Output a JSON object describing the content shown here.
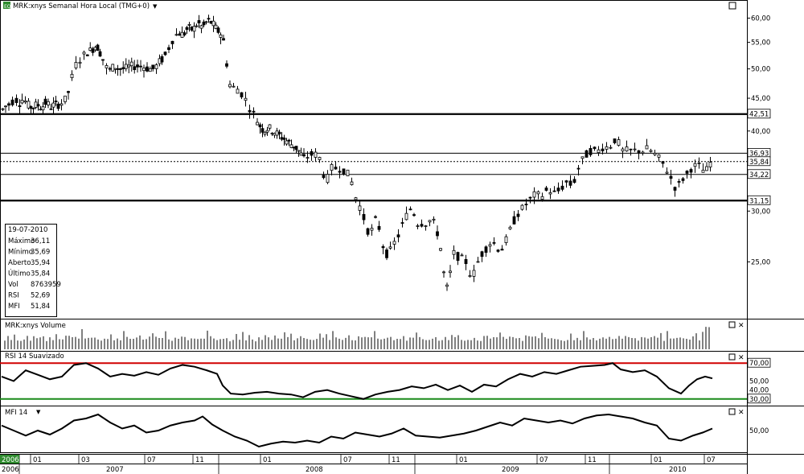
{
  "window": {
    "title": "MRK:xnys Semanal Hora Local (TMG+0)",
    "app_icon_label": "EQ"
  },
  "info_box": {
    "date": "19-07-2010",
    "rows": [
      {
        "label": "Máximo",
        "value": "36,11"
      },
      {
        "label": "Mínimo",
        "value": "35,69"
      },
      {
        "label": "Aberto",
        "value": "35,94"
      },
      {
        "label": "Último",
        "value": "35,84"
      },
      {
        "label": "Vol",
        "value": "8763959"
      },
      {
        "label": "RSI",
        "value": "52,69"
      },
      {
        "label": "MFI",
        "value": "51,84"
      }
    ]
  },
  "panels": {
    "volume": {
      "title": "MRK:xnys Volume"
    },
    "rsi": {
      "title": "RSI 14 Suavizado",
      "upper_label": "70,00",
      "lower_label": "30,00",
      "ticks": [
        "70,00",
        "50,00",
        "40,00",
        "30,00"
      ],
      "upper_color": "#d00000",
      "lower_color": "#1a8a1a"
    },
    "mfi": {
      "title": "MFI 14",
      "ticks": [
        "50,00"
      ]
    }
  },
  "price_axis_ticks": [
    "60,00",
    "55,00",
    "50,00",
    "45,00",
    "40,00",
    "30,00",
    "25,00"
  ],
  "horizontal_levels": [
    {
      "label": "42,51",
      "value": 42.51,
      "style": "heavy"
    },
    {
      "label": "36,93",
      "value": 36.93,
      "style": "thin"
    },
    {
      "label": "35,84",
      "value": 35.84,
      "style": "dotted"
    },
    {
      "label": "34,22",
      "value": 34.22,
      "style": "thin"
    },
    {
      "label": "31,15",
      "value": 31.15,
      "style": "heavy"
    }
  ],
  "time_axis": {
    "months": [
      "01",
      "03",
      "07",
      "11",
      "01",
      "07",
      "11",
      "01",
      "07",
      "11",
      "01",
      "07"
    ],
    "years": [
      "2006",
      "2007",
      "2008",
      "2009",
      "2010"
    ]
  },
  "chart_data": {
    "type": "candlestick",
    "title": "MRK:xnys Semanal Hora Local (TMG+0)",
    "y_axis": {
      "scale": "log",
      "ylim": [
        20.5,
        61.5
      ],
      "ticks": [
        60,
        55,
        50,
        45,
        40,
        30,
        25
      ]
    },
    "x_range": [
      "2006-10",
      "2010-07"
    ],
    "price_points": [
      [
        0,
        43.5
      ],
      [
        3,
        43.0
      ],
      [
        7,
        44.5
      ],
      [
        11,
        43.5
      ],
      [
        16,
        45.5
      ],
      [
        21,
        44.0
      ],
      [
        27,
        45.0
      ],
      [
        32,
        44.0
      ],
      [
        38,
        43.5
      ],
      [
        44,
        44.0
      ],
      [
        50,
        43.5
      ],
      [
        56,
        44.5
      ],
      [
        60,
        43.5
      ],
      [
        66,
        44.0
      ],
      [
        72,
        44.0
      ],
      [
        77,
        44.5
      ],
      [
        81,
        45.0
      ],
      [
        85,
        47.0
      ],
      [
        90,
        50.0
      ],
      [
        95,
        51.5
      ],
      [
        100,
        52.0
      ],
      [
        105,
        53.0
      ],
      [
        112,
        53.5
      ],
      [
        118,
        54.5
      ],
      [
        124,
        52.5
      ],
      [
        128,
        51.0
      ],
      [
        133,
        49.5
      ],
      [
        140,
        50.5
      ],
      [
        146,
        50.0
      ],
      [
        153,
        50.0
      ],
      [
        160,
        50.5
      ],
      [
        167,
        50.5
      ],
      [
        175,
        50.5
      ],
      [
        183,
        50.0
      ],
      [
        190,
        50.0
      ],
      [
        195,
        51.0
      ],
      [
        201,
        52.0
      ],
      [
        206,
        53.0
      ],
      [
        210,
        55.0
      ],
      [
        215,
        56.0
      ],
      [
        220,
        57.0
      ],
      [
        226,
        56.5
      ],
      [
        232,
        58.0
      ],
      [
        238,
        57.5
      ],
      [
        244,
        59.0
      ],
      [
        250,
        58.0
      ],
      [
        256,
        59.5
      ],
      [
        262,
        59.0
      ],
      [
        268,
        57.5
      ],
      [
        274,
        56.5
      ],
      [
        278,
        54.0
      ],
      [
        282,
        48.0
      ],
      [
        286,
        46.5
      ],
      [
        291,
        47.0
      ],
      [
        296,
        46.0
      ],
      [
        301,
        45.5
      ],
      [
        306,
        44.0
      ],
      [
        311,
        43.0
      ],
      [
        316,
        42.0
      ],
      [
        320,
        41.0
      ],
      [
        326,
        40.0
      ],
      [
        332,
        40.5
      ],
      [
        338,
        40.0
      ],
      [
        344,
        39.5
      ],
      [
        350,
        39.0
      ],
      [
        356,
        38.5
      ],
      [
        362,
        38.0
      ],
      [
        368,
        37.5
      ],
      [
        374,
        36.5
      ],
      [
        378,
        36.0
      ],
      [
        383,
        37.0
      ],
      [
        388,
        36.5
      ],
      [
        393,
        37.0
      ],
      [
        398,
        35.5
      ],
      [
        403,
        33.0
      ],
      [
        408,
        34.5
      ],
      [
        413,
        35.5
      ],
      [
        418,
        34.5
      ],
      [
        423,
        35.5
      ],
      [
        428,
        34.0
      ],
      [
        433,
        34.5
      ],
      [
        438,
        32.0
      ],
      [
        443,
        31.0
      ],
      [
        448,
        30.0
      ],
      [
        453,
        28.5
      ],
      [
        458,
        27.5
      ],
      [
        463,
        28.5
      ],
      [
        467,
        29.5
      ],
      [
        472,
        27.0
      ],
      [
        477,
        26.0
      ],
      [
        481,
        25.5
      ],
      [
        486,
        26.5
      ],
      [
        491,
        27.0
      ],
      [
        496,
        28.0
      ],
      [
        501,
        29.0
      ],
      [
        506,
        30.0
      ],
      [
        511,
        30.5
      ],
      [
        515,
        29.0
      ],
      [
        520,
        28.5
      ],
      [
        525,
        29.0
      ],
      [
        530,
        28.5
      ],
      [
        535,
        29.5
      ],
      [
        540,
        28.0
      ],
      [
        544,
        27.5
      ],
      [
        548,
        25.0
      ],
      [
        552,
        23.0
      ],
      [
        556,
        22.5
      ],
      [
        560,
        25.5
      ],
      [
        565,
        26.0
      ],
      [
        570,
        25.0
      ],
      [
        575,
        25.5
      ],
      [
        580,
        24.5
      ],
      [
        585,
        23.5
      ],
      [
        590,
        24.5
      ],
      [
        595,
        25.5
      ],
      [
        600,
        26.0
      ],
      [
        605,
        26.5
      ],
      [
        610,
        27.0
      ],
      [
        615,
        26.5
      ],
      [
        620,
        26.0
      ],
      [
        625,
        26.5
      ],
      [
        630,
        27.5
      ],
      [
        635,
        28.5
      ],
      [
        640,
        29.5
      ],
      [
        645,
        30.0
      ],
      [
        650,
        30.5
      ],
      [
        655,
        31.0
      ],
      [
        660,
        31.5
      ],
      [
        665,
        32.0
      ],
      [
        670,
        31.5
      ],
      [
        675,
        32.0
      ],
      [
        680,
        32.5
      ],
      [
        685,
        32.0
      ],
      [
        690,
        32.0
      ],
      [
        695,
        32.5
      ],
      [
        700,
        33.0
      ],
      [
        705,
        33.5
      ],
      [
        710,
        32.5
      ],
      [
        715,
        34.5
      ],
      [
        720,
        35.5
      ],
      [
        725,
        36.5
      ],
      [
        730,
        37.0
      ],
      [
        735,
        37.5
      ],
      [
        740,
        37.0
      ],
      [
        745,
        37.5
      ],
      [
        750,
        38.0
      ],
      [
        755,
        37.5
      ],
      [
        760,
        38.5
      ],
      [
        765,
        39.0
      ],
      [
        770,
        37.5
      ],
      [
        775,
        37.0
      ],
      [
        780,
        37.5
      ],
      [
        785,
        37.0
      ],
      [
        790,
        37.5
      ],
      [
        795,
        37.0
      ],
      [
        800,
        37.5
      ],
      [
        805,
        37.5
      ],
      [
        810,
        37.0
      ],
      [
        815,
        36.5
      ],
      [
        820,
        36.0
      ],
      [
        825,
        35.0
      ],
      [
        830,
        34.5
      ],
      [
        835,
        33.0
      ],
      [
        840,
        32.5
      ],
      [
        845,
        33.5
      ],
      [
        850,
        34.0
      ],
      [
        855,
        34.5
      ],
      [
        860,
        35.5
      ],
      [
        865,
        35.0
      ],
      [
        870,
        35.5
      ],
      [
        875,
        34.0
      ],
      [
        879,
        35.5
      ],
      [
        884,
        35.84
      ]
    ],
    "volume_levels": [
      0.25,
      0.33,
      0.28,
      0.4,
      0.3,
      0.22,
      0.35,
      0.45,
      0.3,
      0.5,
      0.28,
      0.6,
      0.33
    ],
    "rsi_points": [
      [
        0,
        55
      ],
      [
        15,
        50
      ],
      [
        30,
        62
      ],
      [
        45,
        57
      ],
      [
        60,
        52
      ],
      [
        75,
        55
      ],
      [
        90,
        68
      ],
      [
        105,
        70
      ],
      [
        120,
        64
      ],
      [
        135,
        55
      ],
      [
        150,
        58
      ],
      [
        165,
        56
      ],
      [
        180,
        60
      ],
      [
        195,
        57
      ],
      [
        210,
        64
      ],
      [
        225,
        68
      ],
      [
        240,
        66
      ],
      [
        255,
        62
      ],
      [
        268,
        58
      ],
      [
        275,
        45
      ],
      [
        285,
        36
      ],
      [
        300,
        35
      ],
      [
        315,
        37
      ],
      [
        330,
        38
      ],
      [
        345,
        36
      ],
      [
        360,
        35
      ],
      [
        375,
        32
      ],
      [
        390,
        38
      ],
      [
        405,
        40
      ],
      [
        420,
        36
      ],
      [
        435,
        33
      ],
      [
        450,
        30
      ],
      [
        465,
        35
      ],
      [
        480,
        38
      ],
      [
        495,
        40
      ],
      [
        510,
        44
      ],
      [
        525,
        42
      ],
      [
        540,
        46
      ],
      [
        555,
        40
      ],
      [
        570,
        45
      ],
      [
        585,
        38
      ],
      [
        600,
        46
      ],
      [
        615,
        44
      ],
      [
        630,
        52
      ],
      [
        645,
        58
      ],
      [
        660,
        55
      ],
      [
        675,
        60
      ],
      [
        690,
        58
      ],
      [
        705,
        62
      ],
      [
        720,
        66
      ],
      [
        735,
        67
      ],
      [
        750,
        68
      ],
      [
        760,
        70
      ],
      [
        770,
        63
      ],
      [
        785,
        60
      ],
      [
        800,
        62
      ],
      [
        815,
        55
      ],
      [
        830,
        42
      ],
      [
        845,
        36
      ],
      [
        855,
        45
      ],
      [
        865,
        52
      ],
      [
        875,
        55
      ],
      [
        884,
        53
      ]
    ],
    "rsi_ylim": [
      28,
      72
    ],
    "mfi_points": [
      [
        0,
        55
      ],
      [
        15,
        50
      ],
      [
        30,
        45
      ],
      [
        45,
        50
      ],
      [
        60,
        46
      ],
      [
        75,
        52
      ],
      [
        90,
        60
      ],
      [
        105,
        62
      ],
      [
        120,
        66
      ],
      [
        135,
        58
      ],
      [
        150,
        52
      ],
      [
        165,
        55
      ],
      [
        180,
        48
      ],
      [
        195,
        50
      ],
      [
        210,
        55
      ],
      [
        225,
        58
      ],
      [
        240,
        60
      ],
      [
        250,
        64
      ],
      [
        262,
        56
      ],
      [
        275,
        50
      ],
      [
        290,
        44
      ],
      [
        305,
        40
      ],
      [
        320,
        34
      ],
      [
        335,
        37
      ],
      [
        350,
        39
      ],
      [
        365,
        38
      ],
      [
        380,
        40
      ],
      [
        395,
        38
      ],
      [
        410,
        44
      ],
      [
        425,
        42
      ],
      [
        440,
        48
      ],
      [
        455,
        46
      ],
      [
        470,
        44
      ],
      [
        485,
        47
      ],
      [
        500,
        52
      ],
      [
        515,
        45
      ],
      [
        530,
        44
      ],
      [
        545,
        43
      ],
      [
        560,
        45
      ],
      [
        575,
        47
      ],
      [
        590,
        50
      ],
      [
        605,
        54
      ],
      [
        620,
        58
      ],
      [
        635,
        55
      ],
      [
        650,
        62
      ],
      [
        665,
        60
      ],
      [
        680,
        58
      ],
      [
        695,
        60
      ],
      [
        710,
        57
      ],
      [
        725,
        62
      ],
      [
        740,
        65
      ],
      [
        755,
        66
      ],
      [
        770,
        64
      ],
      [
        785,
        62
      ],
      [
        800,
        58
      ],
      [
        815,
        55
      ],
      [
        830,
        42
      ],
      [
        845,
        40
      ],
      [
        860,
        45
      ],
      [
        872,
        48
      ],
      [
        884,
        52
      ]
    ],
    "mfi_ylim": [
      30,
      70
    ],
    "last_values": {
      "close": 35.84,
      "rsi": 52.69,
      "mfi": 51.84
    }
  }
}
